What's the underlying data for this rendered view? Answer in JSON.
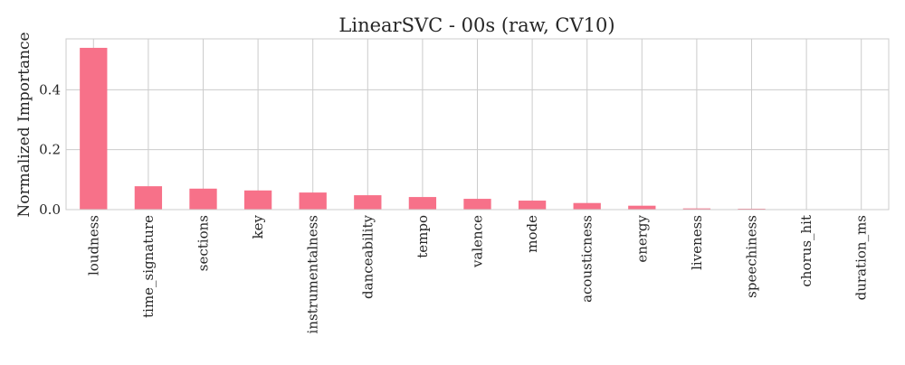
{
  "chart_data": {
    "type": "bar",
    "title": "LinearSVC - 00s (raw, CV10)",
    "xlabel": "",
    "ylabel": "Normalized Importance",
    "categories": [
      "loudness",
      "time_signature",
      "sections",
      "key",
      "instrumentalness",
      "danceability",
      "tempo",
      "valence",
      "mode",
      "acousticness",
      "energy",
      "liveness",
      "speechiness",
      "chorus_hit",
      "duration_ms"
    ],
    "values": [
      0.54,
      0.078,
      0.07,
      0.064,
      0.057,
      0.048,
      0.042,
      0.036,
      0.03,
      0.022,
      0.013,
      0.004,
      0.003,
      0.001,
      0.0005
    ],
    "ylim": [
      0,
      0.57
    ],
    "yticks": [
      0.0,
      0.2,
      0.4
    ],
    "ytick_labels": [
      "0.0",
      "0.2",
      "0.4"
    ],
    "grid": true,
    "bar_color": "#f77189"
  }
}
